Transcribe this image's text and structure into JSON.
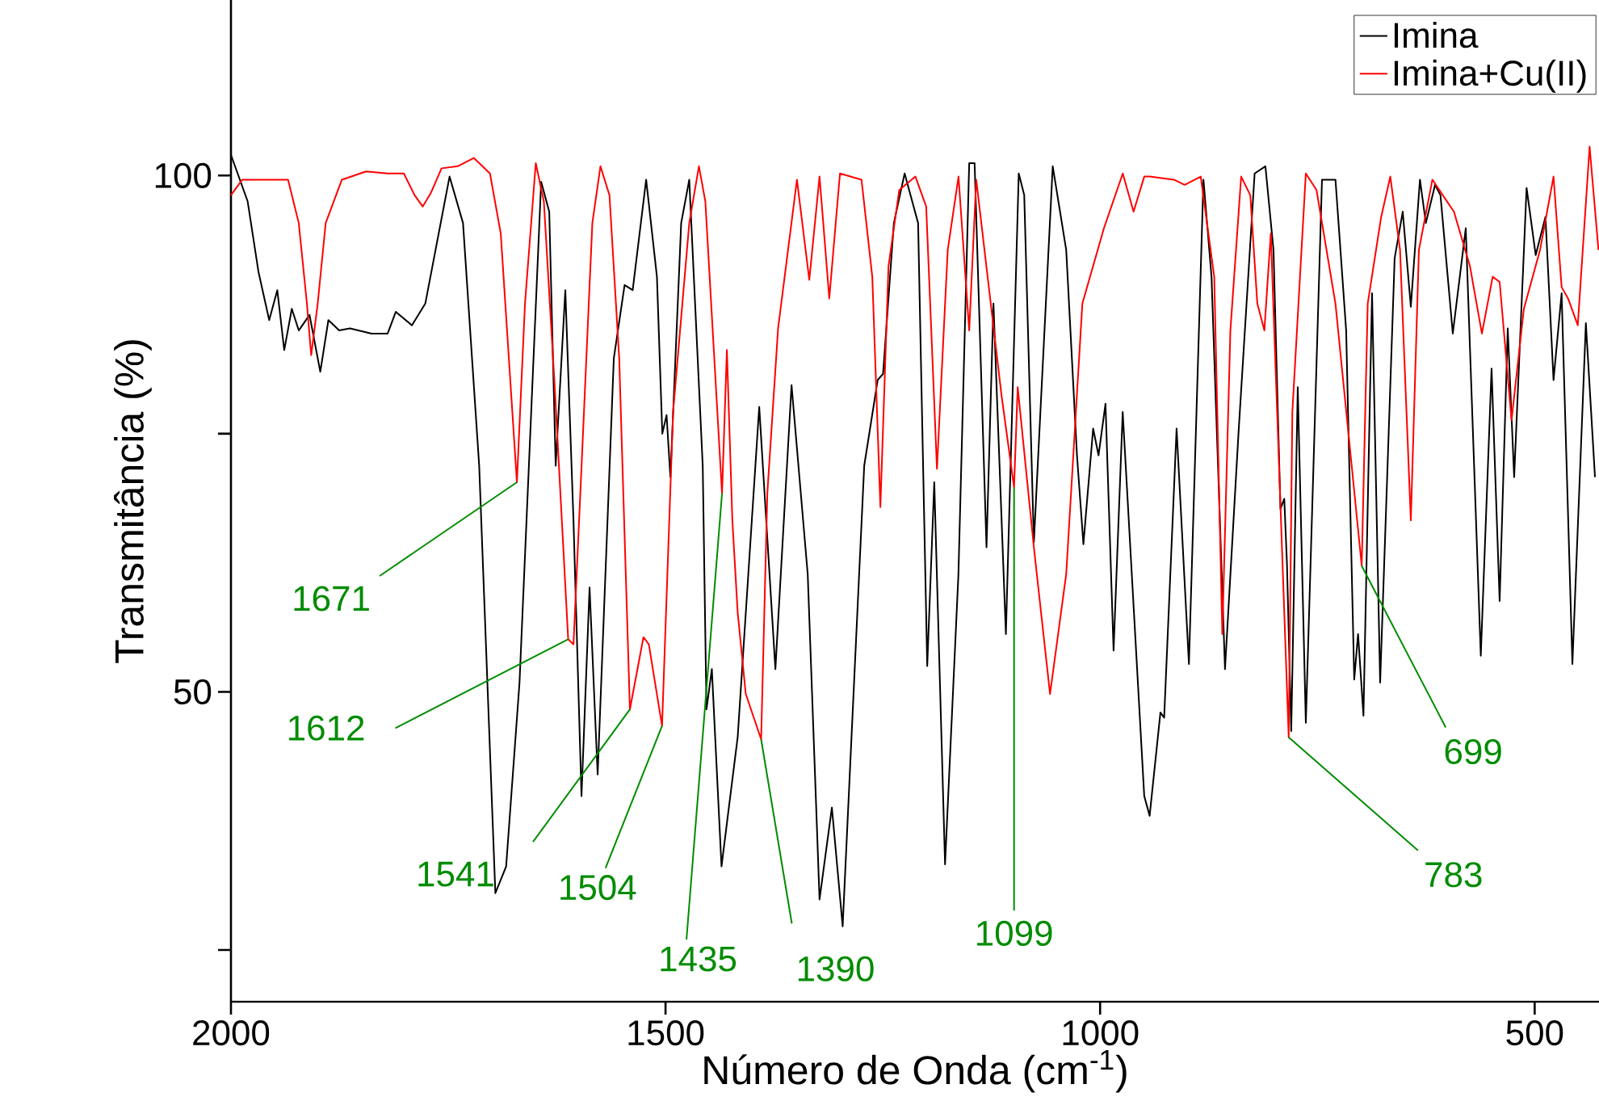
{
  "chart_data": {
    "type": "line",
    "xlabel": "Número de Onda (cm$^{-1}$)",
    "ylabel": "Transmitância (%)",
    "xlim": [
      2000,
      426
    ],
    "ylim": [
      20,
      117
    ],
    "xticks": [
      2000,
      1500,
      1000,
      500
    ],
    "yticks": [
      {
        "value": 25,
        "label": null
      },
      50,
      {
        "value": 75,
        "label": null
      },
      100
    ],
    "legend": "top right",
    "marker": "none",
    "line_style": "solid",
    "series": [
      {
        "name": "Imina",
        "color": "#000000",
        "x": [
          2000,
          1980.8,
          1968.4,
          1956.0,
          1946.7,
          1938.7,
          1930.0,
          1922.0,
          1909.6,
          1897.2,
          1887.9,
          1875.5,
          1863.1,
          1838.3,
          1819.7,
          1810.4,
          1791.8,
          1776.4,
          1748.5,
          1733.0,
          1714.4,
          1695.8,
          1683.4,
          1668.0,
          1643.1,
          1633.8,
          1626.4,
          1615.3,
          1605.9,
          1596.7,
          1587.4,
          1578.1,
          1559.5,
          1547.1,
          1537.8,
          1522.3,
          1509.9,
          1503.7,
          1498.8,
          1494.4,
          1482.0,
          1472.7,
          1457.2,
          1452.9,
          1446.7,
          1435.6,
          1417.0,
          1392.2,
          1373.6,
          1355.0,
          1336.4,
          1322.8,
          1308.6,
          1296.2,
          1271.4,
          1255.9,
          1249.7,
          1237.3,
          1224.9,
          1209.4,
          1198.9,
          1190.8,
          1178.4,
          1163.0,
          1150.6,
          1144.4,
          1130.7,
          1122.7,
          1108.4,
          1093.6,
          1087.3,
          1076.2,
          1054.5,
          1039.0,
          1026.6,
          1019.2,
          1008.0,
          1001.8,
          993.8,
          984.5,
          974.0,
          949.2,
          943.0,
          930.6,
          926.3,
          912.0,
          897.8,
          881.1,
          871.8,
          856.3,
          840.8,
          822.2,
          809.8,
          800.5,
          792.5,
          788.1,
          785.0,
          780.1,
          772.6,
          763.3,
          744.7,
          729.2,
          716.9,
          707.6,
          703.2,
          697.0,
          687.1,
          677.8,
          661.1,
          651.8,
          642.5,
          632.0,
          625.2,
          614.6,
          608.4,
          594.2,
          579.3,
          562.0,
          549.6,
          540.3,
          531.0,
          523.6,
          509.3,
          498.8,
          487.6,
          478.3,
          469.0,
          456.6,
          441.1,
          430.6
        ],
        "values": [
          102,
          97.5,
          90.7,
          86.0,
          88.9,
          83.1,
          87.1,
          85.0,
          86.5,
          81.0,
          86.0,
          85.0,
          85.2,
          84.7,
          84.7,
          86.8,
          85.5,
          87.6,
          99.9,
          95.4,
          71.9,
          30.5,
          33.1,
          50.9,
          99.4,
          96.5,
          71.9,
          88.9,
          66.6,
          39.9,
          60.1,
          42.0,
          82.3,
          89.4,
          88.9,
          99.6,
          90.2,
          75.0,
          76.8,
          70.8,
          95.4,
          99.6,
          71.9,
          48.3,
          52.2,
          33.1,
          45.6,
          77.6,
          52.2,
          79.7,
          61.4,
          29.9,
          38.8,
          27.3,
          71.9,
          80.2,
          80.8,
          95.4,
          100.2,
          95.4,
          52.5,
          70.3,
          33.3,
          61.4,
          101.2,
          101.2,
          64.0,
          87.6,
          55.6,
          100.2,
          98.1,
          64.5,
          100.9,
          92.8,
          72.9,
          64.3,
          75.5,
          72.9,
          77.9,
          54.0,
          77.1,
          39.9,
          38.0,
          48.0,
          47.5,
          75.5,
          52.7,
          99.6,
          90.2,
          52.2,
          75.0,
          100.2,
          100.9,
          92.8,
          67.7,
          68.7,
          62.4,
          46.2,
          79.5,
          47.0,
          99.6,
          99.6,
          85.0,
          51.2,
          55.6,
          47.7,
          88.6,
          50.9,
          92.0,
          96.5,
          87.3,
          99.6,
          95.4,
          99.1,
          98.1,
          84.7,
          94.9,
          53.5,
          81.3,
          58.8,
          85.2,
          70.8,
          98.8,
          92.3,
          96.0,
          80.2,
          88.6,
          52.7,
          85.7,
          70.8
        ]
      },
      {
        "name": "Imina+Cu(II)",
        "color": "#ff0000",
        "x": [
          2000,
          1987.0,
          1943.6,
          1934.3,
          1922.0,
          1912.6,
          1907.7,
          1900.2,
          1891.0,
          1872.4,
          1844.5,
          1819.7,
          1801.1,
          1788.7,
          1779.4,
          1770.1,
          1757.7,
          1739.2,
          1720.6,
          1702.0,
          1689.6,
          1671,
          1661.7,
          1649.3,
          1640.0,
          1627.6,
          1612,
          1605.9,
          1596.6,
          1584.2,
          1574.9,
          1564.5,
          1553.3,
          1541,
          1525.4,
          1519.2,
          1504,
          1491.3,
          1472.7,
          1461.6,
          1454.2,
          1435,
          1429.4,
          1423.1,
          1417.0,
          1407.7,
          1390,
          1382.9,
          1370.5,
          1348.8,
          1334.6,
          1322.8,
          1311.6,
          1299.3,
          1274.5,
          1262.1,
          1252.8,
          1243.5,
          1231.1,
          1212.5,
          1200.1,
          1187.7,
          1175.3,
          1162.9,
          1150.6,
          1142.5,
          1125.8,
          1113.4,
          1099,
          1094.8,
          1076.2,
          1057.6,
          1039.0,
          1020.4,
          995.6,
          973.9,
          961.5,
          949.2,
          943.0,
          915.1,
          902.7,
          884.2,
          868.7,
          859.4,
          850.1,
          837.7,
          827.2,
          819.1,
          811.0,
          803.6,
          783,
          778.8,
          763.3,
          751.0,
          729.2,
          699,
          692.1,
          676.6,
          666.1,
          654.9,
          642.5,
          633.2,
          617.7,
          592.9,
          574.4,
          560.7,
          548.3,
          540.3,
          526.6,
          512.4,
          493.8,
          478.3,
          469.0,
          461.6,
          450.4,
          436.8,
          426.6
        ],
        "values": [
          98.1,
          99.6,
          99.6,
          99.6,
          95.4,
          87.6,
          82.6,
          87.6,
          95.4,
          99.6,
          100.4,
          100.2,
          100.2,
          98.1,
          97.0,
          98.3,
          100.7,
          100.9,
          101.7,
          100.2,
          94.4,
          70.3,
          87.6,
          101.2,
          97.5,
          79.7,
          55.1,
          54.6,
          71.9,
          95.4,
          100.9,
          98.1,
          82.3,
          48.3,
          55.3,
          54.6,
          46.7,
          77.1,
          95.4,
          100.9,
          97.5,
          69.2,
          83.1,
          66.6,
          57.7,
          49.8,
          45.4,
          69.2,
          85.2,
          99.6,
          89.9,
          99.9,
          88.1,
          100.2,
          99.6,
          90.2,
          67.9,
          91.2,
          98.6,
          99.9,
          97.0,
          71.6,
          92.8,
          99.9,
          85.0,
          99.6,
          87.6,
          78.7,
          69.8,
          79.5,
          64.0,
          49.8,
          61.4,
          87.6,
          94.9,
          100.2,
          96.5,
          99.9,
          99.9,
          99.6,
          99.1,
          99.9,
          90.2,
          55.6,
          85.0,
          99.9,
          98.1,
          87.6,
          85.0,
          94.4,
          45.6,
          77.1,
          100.2,
          98.6,
          87.6,
          62.2,
          87.6,
          96.0,
          99.9,
          92.8,
          66.6,
          92.8,
          99.6,
          96.5,
          91.2,
          84.7,
          90.2,
          89.7,
          76.3,
          87.1,
          92.8,
          99.9,
          89.2,
          88.1,
          85.5,
          102.8,
          92.8
        ]
      }
    ],
    "annotations": [
      {
        "text": "1671",
        "x": 1671,
        "y": 70.3
      },
      {
        "text": "1612",
        "x": 1612,
        "y": 55.1
      },
      {
        "text": "1541",
        "x": 1541,
        "y": 48.3
      },
      {
        "text": "1504",
        "x": 1504,
        "y": 46.7
      },
      {
        "text": "1435",
        "x": 1435,
        "y": 69.2
      },
      {
        "text": "1390",
        "x": 1390,
        "y": 45.4
      },
      {
        "text": "1099",
        "x": 1099,
        "y": 69.8
      },
      {
        "text": "783",
        "x": 783,
        "y": 45.6
      },
      {
        "text": "699",
        "x": 699,
        "y": 62.2
      }
    ]
  }
}
